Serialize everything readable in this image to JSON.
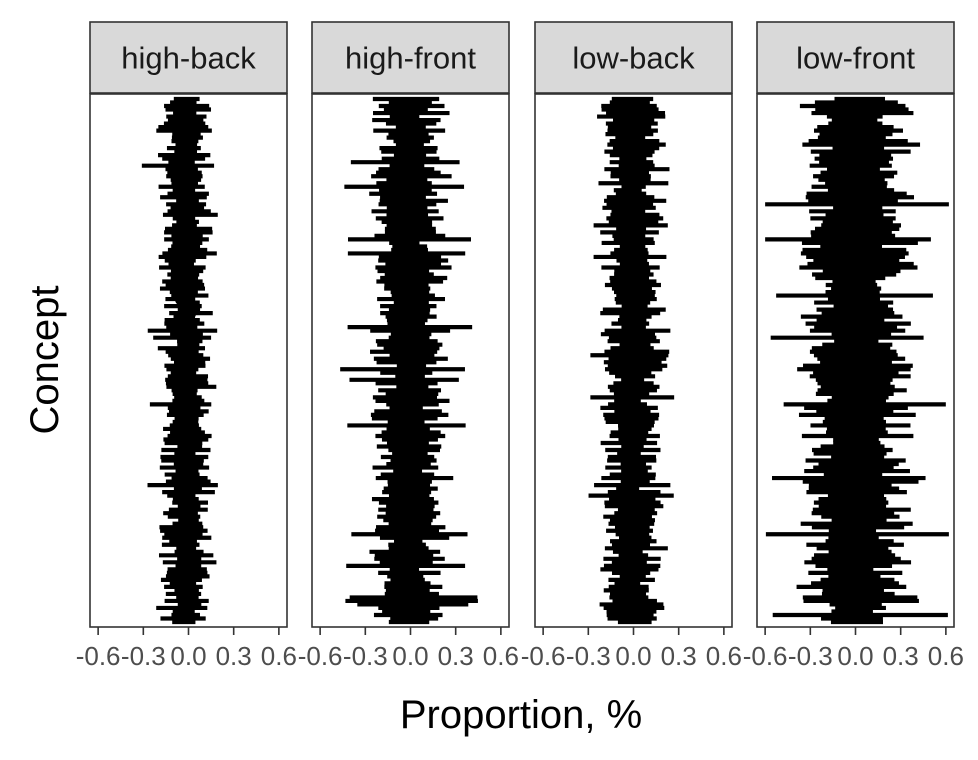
{
  "chart_data": {
    "type": "scatter",
    "description_kind": "faceted per-concept intervals",
    "xlabel": "Proportion, %",
    "ylabel": "Concept",
    "xlim": [
      -0.6,
      0.6
    ],
    "x_ticks": [
      -0.6,
      -0.3,
      0.0,
      0.3,
      0.6
    ],
    "x_tick_labels": [
      "-0.6",
      "-0.3",
      "0.0",
      "0.3",
      "0.6"
    ],
    "y_ticks_shown": false,
    "n_concepts": 150,
    "grid": false,
    "legend": "none",
    "facets": [
      {
        "label": "high-back",
        "center": -0.02,
        "typical_half_width": 0.12,
        "max_half_width": 0.28
      },
      {
        "label": "high-front",
        "center": -0.01,
        "typical_half_width": 0.17,
        "max_half_width": 0.45
      },
      {
        "label": "low-back",
        "center": -0.01,
        "typical_half_width": 0.14,
        "max_half_width": 0.3
      },
      {
        "label": "low-front",
        "center": 0.0,
        "typical_half_width": 0.26,
        "max_half_width": 0.62
      }
    ],
    "colors": {
      "marks": "#000000",
      "panel_border": "#333333",
      "strip_fill": "#d9d9d9",
      "tick_text": "#4d4d4d"
    }
  }
}
